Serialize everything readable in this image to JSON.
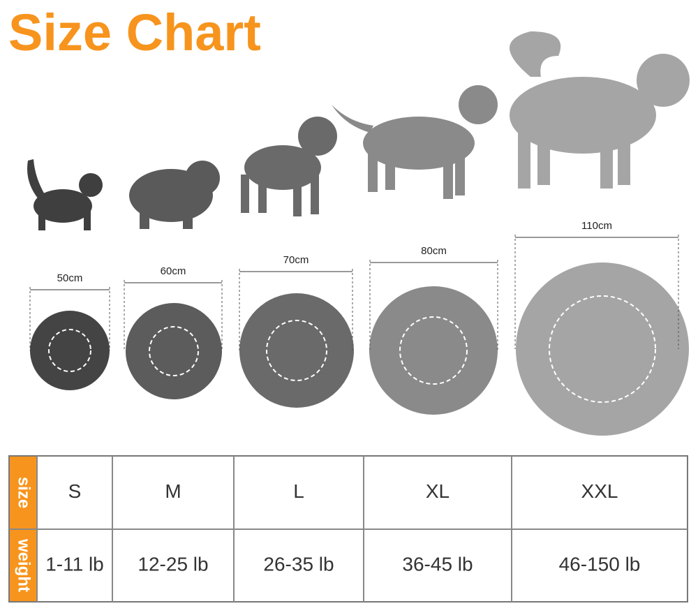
{
  "header": {
    "title": "Size Chart"
  },
  "diameters": [
    "50cm",
    "60cm",
    "70cm",
    "80cm",
    "110cm"
  ],
  "table": {
    "row_labels": [
      "size",
      "weight"
    ],
    "rows": [
      [
        "S",
        "M",
        "L",
        "XL",
        "XXL"
      ],
      [
        "1-11 lb",
        "12-25 lb",
        "26-35 lb",
        "36-45 lb",
        "46-150 lb"
      ]
    ]
  }
}
